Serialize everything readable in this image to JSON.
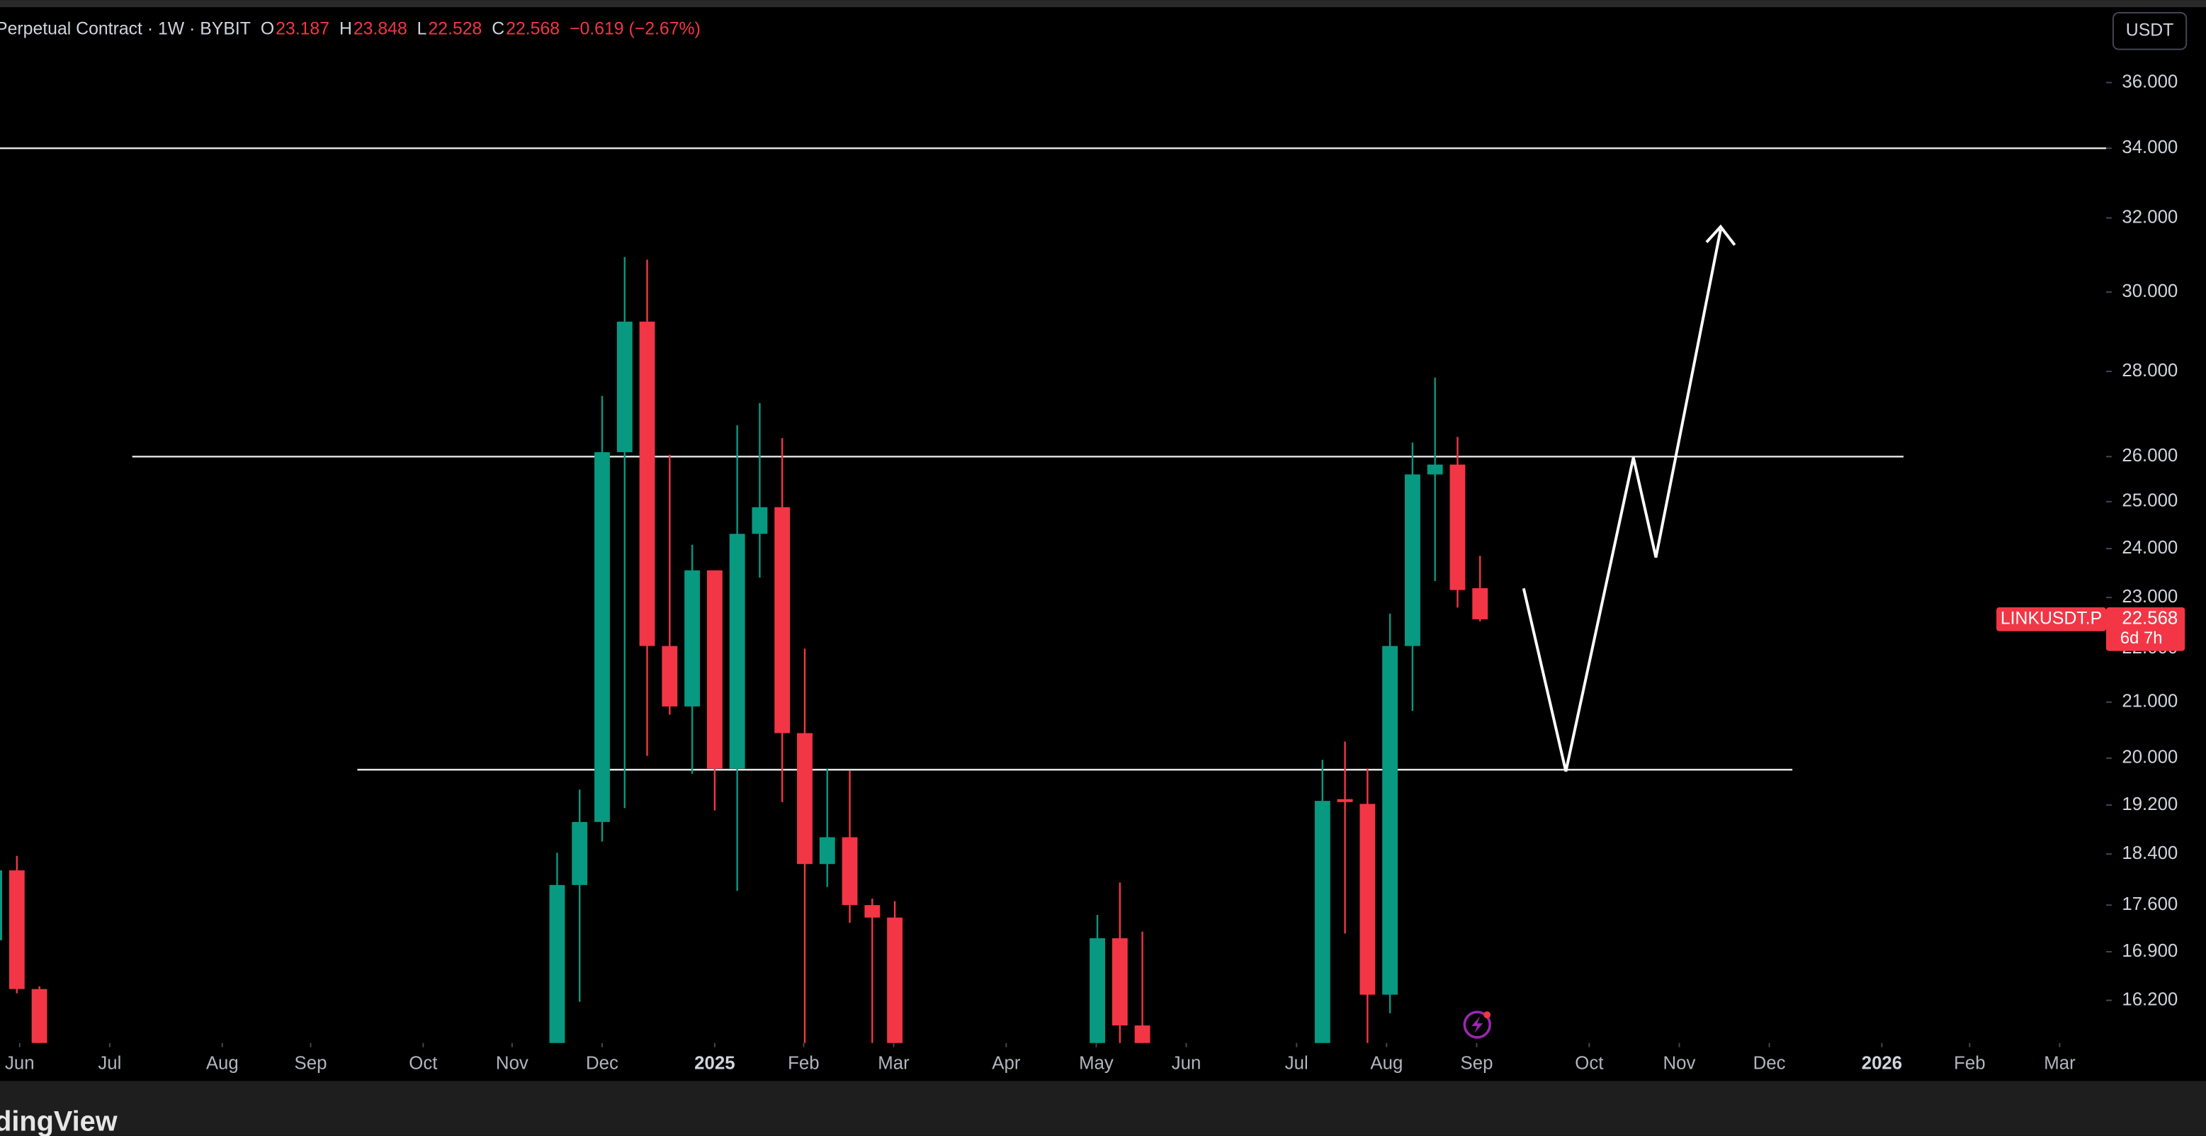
{
  "chart_data": {
    "type": "candlestick",
    "title": "Perpetual Contract · 1W · BYBIT",
    "ohlc_header": {
      "labels": [
        "O",
        "H",
        "L",
        "C"
      ],
      "values": [
        23.187,
        23.848,
        22.528,
        22.568
      ],
      "change": "−0.619 (−2.67%)"
    },
    "currency": "USDT",
    "symbol": "LINKUSDT.P",
    "last_price": 22.568,
    "last_price_label": "22.568",
    "countdown": "6d 7h",
    "logo": "dingView",
    "log_scale": true,
    "up_color": "#089981",
    "down_color": "#f23645",
    "levels": [
      34,
      26,
      19.8
    ],
    "x": [
      -0.25,
      0.75,
      1.75,
      24.75,
      25.75,
      26.75,
      27.75,
      28.75,
      29.75,
      30.75,
      31.75,
      32.75,
      33.75,
      34.75,
      35.75,
      36.75,
      37.75,
      38.75,
      39.75,
      48.75,
      49.75,
      50.75,
      58.75,
      59.75,
      60.75,
      61.75,
      62.75,
      63.75,
      64.75,
      65.75
    ],
    "open": [
      17.07,
      18.14,
      16.36,
      15.4,
      17.91,
      18.92,
      26.1,
      29.24,
      22.05,
      20.92,
      23.55,
      19.82,
      24.31,
      24.88,
      20.44,
      18.24,
      18.67,
      17.6,
      17.41,
      15.4,
      17.1,
      15.85,
      15.4,
      19.3,
      19.22,
      16.28,
      22.05,
      25.6,
      25.82,
      23.187
    ],
    "high": [
      18.3,
      18.37,
      16.4,
      18.42,
      19.46,
      27.41,
      30.93,
      30.86,
      26.04,
      24.08,
      23.55,
      26.72,
      27.24,
      26.42,
      22.0,
      19.82,
      19.78,
      17.7,
      17.66,
      17.45,
      17.95,
      17.2,
      19.97,
      20.29,
      19.82,
      22.68,
      26.32,
      27.85,
      26.45,
      23.848
    ],
    "low": [
      17.0,
      16.3,
      15.3,
      15.3,
      16.18,
      18.6,
      19.15,
      20.04,
      20.77,
      19.73,
      19.11,
      17.82,
      23.4,
      19.25,
      15.3,
      17.88,
      17.33,
      15.3,
      15.3,
      15.3,
      15.3,
      15.3,
      15.3,
      17.17,
      15.3,
      16.02,
      20.84,
      23.33,
      22.8,
      22.528
    ],
    "close": [
      18.14,
      16.36,
      15.4,
      17.91,
      18.92,
      26.1,
      29.24,
      22.05,
      20.92,
      23.55,
      19.82,
      24.31,
      24.88,
      20.44,
      18.24,
      18.67,
      17.6,
      17.41,
      15.4,
      17.1,
      15.85,
      15.4,
      19.27,
      19.25,
      16.28,
      22.05,
      25.6,
      25.82,
      23.15,
      22.568
    ],
    "xlim": [
      0,
      93.5625
    ],
    "xticks": [
      {
        "value": 0.875,
        "label": "Jun"
      },
      {
        "value": 4.875,
        "label": "Jul"
      },
      {
        "value": 9.875,
        "label": "Aug"
      },
      {
        "value": 13.8,
        "label": "Sep"
      },
      {
        "value": 18.8,
        "label": "Oct"
      },
      {
        "value": 22.75,
        "label": "Nov"
      },
      {
        "value": 26.75,
        "label": "Dec"
      },
      {
        "value": 31.75,
        "label": "2025"
      },
      {
        "value": 35.7,
        "label": "Feb"
      },
      {
        "value": 39.7,
        "label": "Mar"
      },
      {
        "value": 44.7,
        "label": "Apr"
      },
      {
        "value": 48.7,
        "label": "May"
      },
      {
        "value": 52.7,
        "label": "Jun"
      },
      {
        "value": 57.6,
        "label": "Jul"
      },
      {
        "value": 61.6,
        "label": "Aug"
      },
      {
        "value": 65.6,
        "label": "Sep"
      },
      {
        "value": 70.6,
        "label": "Oct"
      },
      {
        "value": 74.6,
        "label": "Nov"
      },
      {
        "value": 78.6,
        "label": "Dec"
      },
      {
        "value": 83.6,
        "label": "2026"
      },
      {
        "value": 87.5,
        "label": "Feb"
      },
      {
        "value": 91.5,
        "label": "Mar"
      }
    ],
    "ylim": [
      15.61,
      38.3
    ],
    "yticks": [
      {
        "value": 36,
        "label": "36.000"
      },
      {
        "value": 34,
        "label": "34.000"
      },
      {
        "value": 32,
        "label": "32.000"
      },
      {
        "value": 30,
        "label": "30.000"
      },
      {
        "value": 28,
        "label": "28.000"
      },
      {
        "value": 26,
        "label": "26.000"
      },
      {
        "value": 25,
        "label": "25.000"
      },
      {
        "value": 24,
        "label": "24.000"
      },
      {
        "value": 23,
        "label": "23.000"
      },
      {
        "value": 22,
        "label": "22.000"
      },
      {
        "value": 21,
        "label": "21.000"
      },
      {
        "value": 20,
        "label": "20.000"
      },
      {
        "value": 19.2,
        "label": "19.200"
      },
      {
        "value": 18.4,
        "label": "18.400"
      },
      {
        "value": 17.6,
        "label": "17.600"
      },
      {
        "value": 16.9,
        "label": "16.900"
      },
      {
        "value": 16.2,
        "label": "16.200"
      }
    ]
  }
}
